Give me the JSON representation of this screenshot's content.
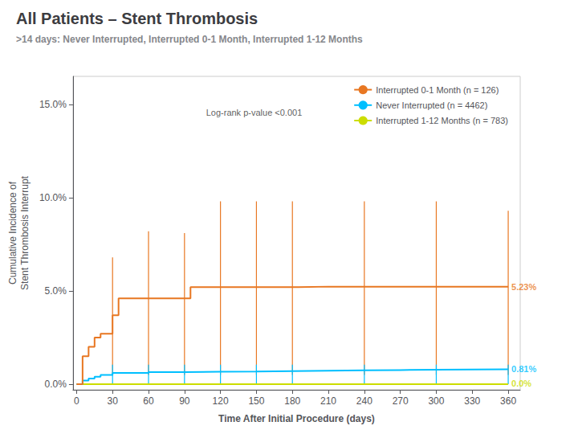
{
  "chart_data": {
    "type": "line",
    "title": "All Patients – Stent Thrombosis",
    "subtitle": ">14 days: Never Interrupted, Interrupted 0-1 Month, Interrupted 1-12 Months",
    "xlabel": "Time After Initial Procedure (days)",
    "ylabel": "Cumulative Incidence of\nStent Thrombosis Interrupt",
    "annotations": [
      {
        "text": "Log-rank p-value <0.001",
        "x": 108,
        "y": 14.8
      }
    ],
    "xlim": [
      -3,
      370
    ],
    "xticks": [
      0,
      30,
      60,
      90,
      120,
      150,
      180,
      210,
      240,
      270,
      300,
      330,
      360
    ],
    "ylim": [
      -0.3,
      16.5
    ],
    "yticks": [
      {
        "value": 0.0,
        "label": "0.0%"
      },
      {
        "value": 5.0,
        "label": "5.0%"
      },
      {
        "value": 10.0,
        "label": "10.0%"
      },
      {
        "value": 15.0,
        "label": "15.0%"
      }
    ],
    "grid": false,
    "legend": "upper right",
    "series": [
      {
        "name": "Interrupted 0-1 Month (n = 126)",
        "color": "#E87722",
        "type": "step",
        "x": [
          0,
          5,
          10,
          15,
          20,
          30,
          35,
          60,
          65,
          90,
          95,
          120,
          125,
          150,
          155,
          180,
          185,
          210,
          215,
          240,
          245,
          270,
          275,
          300,
          305,
          330,
          335,
          360
        ],
        "values": [
          0,
          1.5,
          2.0,
          2.5,
          2.7,
          3.7,
          4.6,
          4.6,
          4.6,
          4.6,
          5.2,
          5.2,
          5.2,
          5.2,
          5.2,
          5.2,
          5.23,
          5.23,
          5.23,
          5.23,
          5.23,
          5.23,
          5.23,
          5.23,
          5.23,
          5.23,
          5.23,
          5.23
        ],
        "error_bars": {
          "x": [
            30,
            60,
            90,
            120,
            150,
            180,
            240,
            300,
            360
          ],
          "low": [
            0.5,
            0.5,
            0.5,
            0.5,
            0.5,
            0.5,
            0.5,
            0.5,
            0.5
          ],
          "high": [
            6.8,
            8.2,
            8.1,
            9.8,
            9.8,
            9.8,
            9.8,
            9.8,
            9.3
          ]
        },
        "end_label": {
          "value": 5.23,
          "label": "5.23%"
        }
      },
      {
        "name": "Never Interrupted (n = 4462)",
        "color": "#00BFFF",
        "type": "step",
        "x": [
          0,
          5,
          10,
          15,
          20,
          30,
          60,
          90,
          120,
          150,
          180,
          210,
          240,
          270,
          300,
          330,
          360
        ],
        "values": [
          0,
          0.2,
          0.3,
          0.4,
          0.5,
          0.6,
          0.65,
          0.67,
          0.68,
          0.7,
          0.72,
          0.74,
          0.76,
          0.78,
          0.79,
          0.8,
          0.81
        ],
        "error_bars": {
          "x": [
            30,
            60,
            90,
            120,
            150,
            180,
            240,
            300,
            360
          ],
          "low": [
            0.0,
            0.0,
            0.0,
            0.0,
            0.0,
            0.0,
            0.0,
            0.0,
            0.0
          ],
          "high": [
            1.05,
            1.05,
            1.05,
            1.05,
            1.05,
            1.05,
            1.05,
            1.05,
            1.05
          ]
        },
        "end_label": {
          "value": 0.81,
          "label": "0.81%"
        }
      },
      {
        "name": "Interrupted 1-12 Months (n = 783)",
        "color": "#CCDD00",
        "type": "line",
        "x": [
          0,
          360
        ],
        "values": [
          0.0,
          0.0
        ],
        "end_label": {
          "value": 0.05,
          "label": "0.0%"
        }
      }
    ]
  }
}
